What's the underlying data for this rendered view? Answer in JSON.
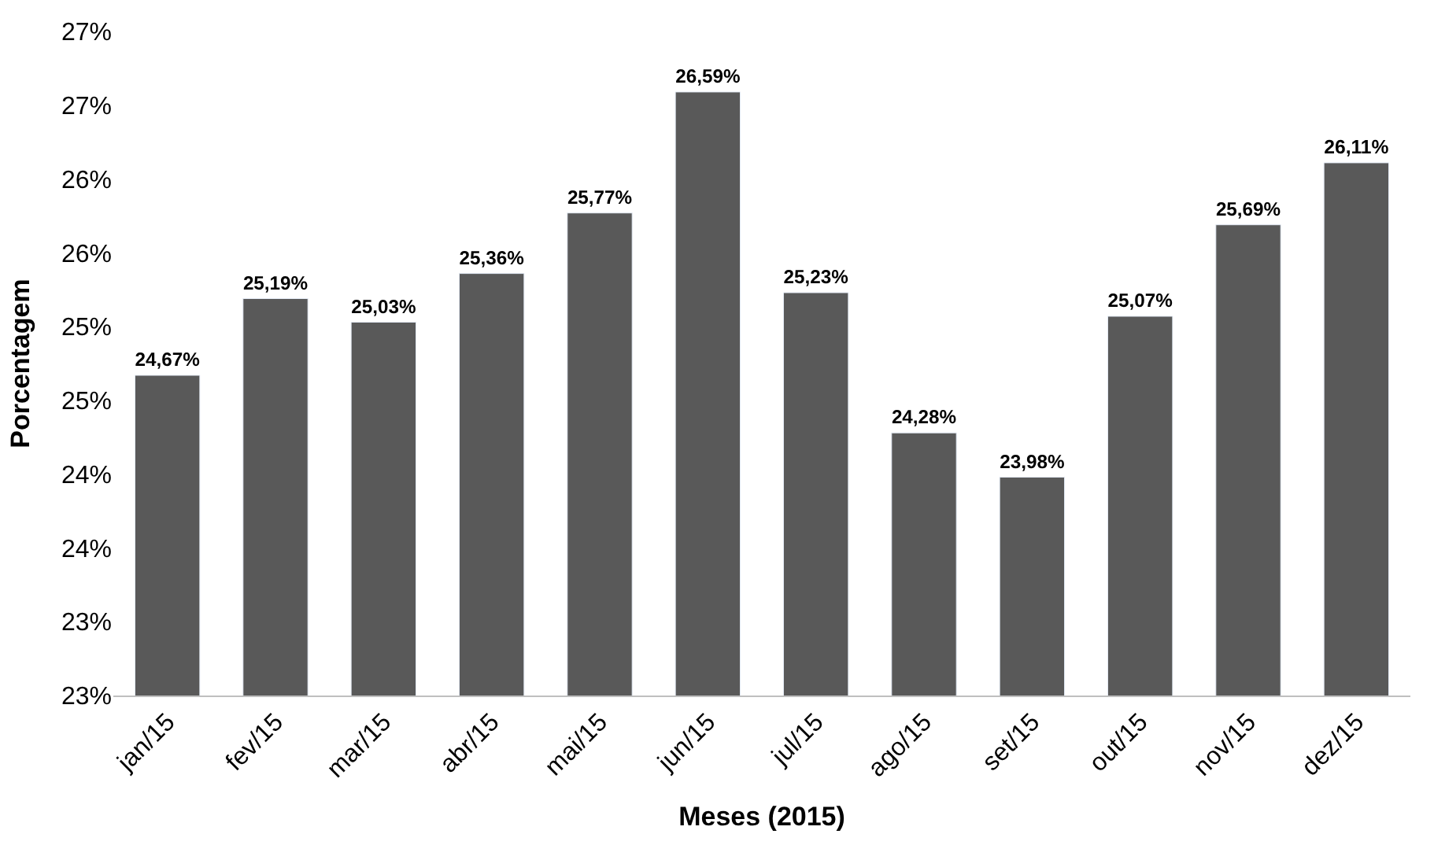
{
  "chart_data": {
    "type": "bar",
    "xlabel": "Meses (2015)",
    "ylabel": "Porcentagem",
    "categories": [
      "jan/15",
      "fev/15",
      "mar/15",
      "abr/15",
      "mai/15",
      "jun/15",
      "jul/15",
      "ago/15",
      "set/15",
      "out/15",
      "nov/15",
      "dez/15"
    ],
    "values": [
      24.67,
      25.19,
      25.03,
      25.36,
      25.77,
      26.59,
      25.23,
      24.28,
      23.98,
      25.07,
      25.69,
      26.11
    ],
    "value_labels": [
      "24,67%",
      "25,19%",
      "25,03%",
      "25,36%",
      "25,77%",
      "26,59%",
      "25,23%",
      "24,28%",
      "23,98%",
      "25,07%",
      "25,69%",
      "26,11%"
    ],
    "color": "#595959",
    "ylim": [
      22.5,
      27.0
    ],
    "yticks": [
      {
        "value": 22.5,
        "label": "23%"
      },
      {
        "value": 23.0,
        "label": "23%"
      },
      {
        "value": 23.5,
        "label": "24%"
      },
      {
        "value": 24.0,
        "label": "24%"
      },
      {
        "value": 24.5,
        "label": "25%"
      },
      {
        "value": 25.0,
        "label": "25%"
      },
      {
        "value": 25.5,
        "label": "26%"
      },
      {
        "value": 26.0,
        "label": "26%"
      },
      {
        "value": 26.5,
        "label": "27%"
      },
      {
        "value": 27.0,
        "label": "27%"
      }
    ],
    "legend": false
  }
}
